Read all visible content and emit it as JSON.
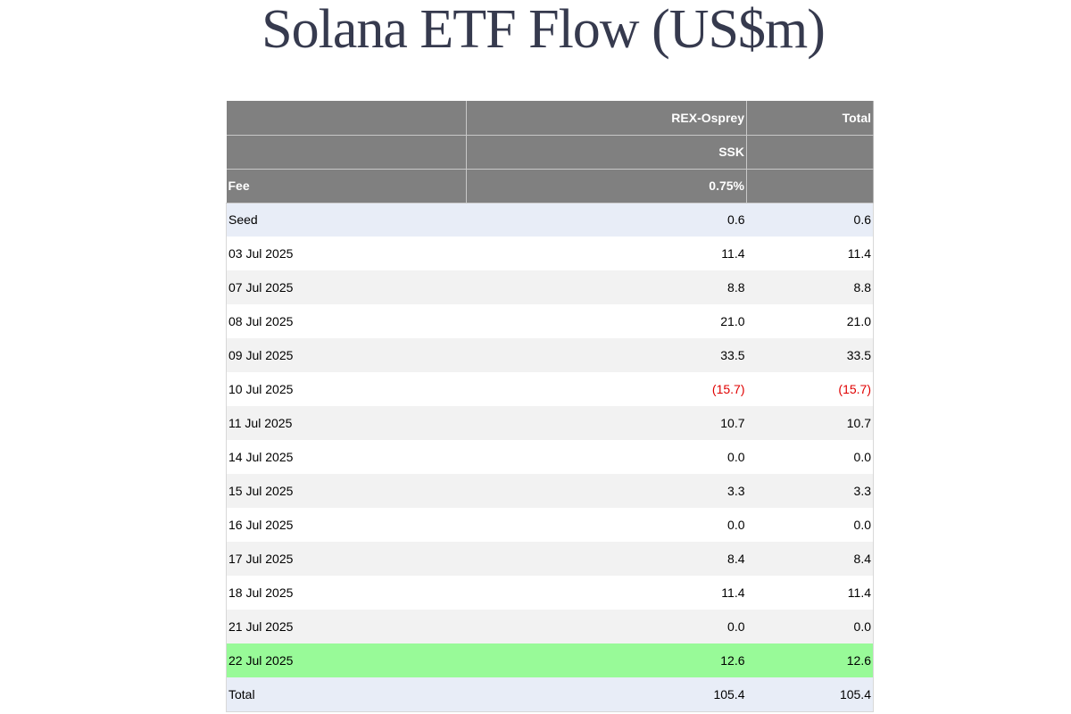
{
  "page": {
    "title": "Solana ETF Flow (US$m)"
  },
  "table": {
    "header": {
      "row1": [
        "",
        "REX-Osprey",
        "Total"
      ],
      "row2": [
        "",
        "SSK",
        ""
      ],
      "row3": [
        "Fee",
        "0.75%",
        ""
      ]
    },
    "rows": [
      {
        "date": "Seed",
        "ssk": "0.6",
        "total": "0.6",
        "style": "light",
        "negative": false
      },
      {
        "date": "03 Jul 2025",
        "ssk": "11.4",
        "total": "11.4",
        "style": "white",
        "negative": false
      },
      {
        "date": "07 Jul 2025",
        "ssk": "8.8",
        "total": "8.8",
        "style": "grey",
        "negative": false
      },
      {
        "date": "08 Jul 2025",
        "ssk": "21.0",
        "total": "21.0",
        "style": "white",
        "negative": false
      },
      {
        "date": "09 Jul 2025",
        "ssk": "33.5",
        "total": "33.5",
        "style": "grey",
        "negative": false
      },
      {
        "date": "10 Jul 2025",
        "ssk": "(15.7)",
        "total": "(15.7)",
        "style": "white",
        "negative": true
      },
      {
        "date": "11 Jul 2025",
        "ssk": "10.7",
        "total": "10.7",
        "style": "grey",
        "negative": false
      },
      {
        "date": "14 Jul 2025",
        "ssk": "0.0",
        "total": "0.0",
        "style": "white",
        "negative": false
      },
      {
        "date": "15 Jul 2025",
        "ssk": "3.3",
        "total": "3.3",
        "style": "grey",
        "negative": false
      },
      {
        "date": "16 Jul 2025",
        "ssk": "0.0",
        "total": "0.0",
        "style": "white",
        "negative": false
      },
      {
        "date": "17 Jul 2025",
        "ssk": "8.4",
        "total": "8.4",
        "style": "grey",
        "negative": false
      },
      {
        "date": "18 Jul 2025",
        "ssk": "11.4",
        "total": "11.4",
        "style": "white",
        "negative": false
      },
      {
        "date": "21 Jul 2025",
        "ssk": "0.0",
        "total": "0.0",
        "style": "grey",
        "negative": false
      },
      {
        "date": "22 Jul 2025",
        "ssk": "12.6",
        "total": "12.6",
        "style": "green",
        "negative": false
      },
      {
        "date": "Total",
        "ssk": "105.4",
        "total": "105.4",
        "style": "light",
        "negative": false
      }
    ]
  },
  "colors": {
    "title": "#363a4e",
    "header_bg": "#808080",
    "header_text": "#ffffff",
    "row_light": "#e8edf7",
    "row_grey": "#f2f2f2",
    "row_green": "#98fa98",
    "negative": "#e00000"
  }
}
